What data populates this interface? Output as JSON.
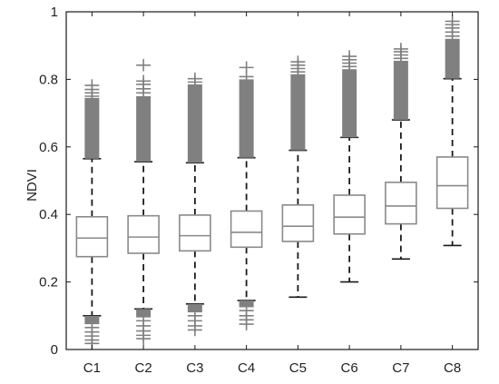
{
  "chart_data": {
    "type": "box",
    "title": "",
    "xlabel": "",
    "ylabel": "NDVI",
    "ylim": [
      0,
      1
    ],
    "yticks": [
      0,
      0.2,
      0.4,
      0.6,
      0.8,
      1
    ],
    "ytick_labels": [
      "0",
      "0.2",
      "0.4",
      "0.6",
      "0.8",
      "1"
    ],
    "grid": false,
    "legend": "none",
    "colors": {
      "box": "#8a8a8a",
      "whisker": "#1a1a1a",
      "outlier": "#808080",
      "axis": "#1a1a1a"
    },
    "categories": [
      "C1",
      "C2",
      "C3",
      "C4",
      "C5",
      "C6",
      "C7",
      "C8"
    ],
    "boxes": [
      {
        "category": "C1",
        "whisker_low": 0.1,
        "q1": 0.275,
        "median": 0.33,
        "q3": 0.393,
        "whisker_high": 0.565,
        "outliers_low_dense": [
          0.075,
          0.1
        ],
        "outliers_low_marks": [
          0.065,
          0.052,
          0.04,
          0.028,
          0.018
        ],
        "outliers_high_dense": [
          0.565,
          0.745
        ],
        "outliers_high_marks": [
          0.75,
          0.76,
          0.77,
          0.782
        ]
      },
      {
        "category": "C2",
        "whisker_low": 0.12,
        "q1": 0.285,
        "median": 0.333,
        "q3": 0.396,
        "whisker_high": 0.556,
        "outliers_low_dense": [
          0.095,
          0.12
        ],
        "outliers_low_marks": [
          0.085,
          0.07,
          0.055,
          0.042,
          0.032
        ],
        "outliers_high_dense": [
          0.556,
          0.75
        ],
        "outliers_high_marks": [
          0.76,
          0.772,
          0.785,
          0.795,
          0.842
        ]
      },
      {
        "category": "C3",
        "whisker_low": 0.135,
        "q1": 0.292,
        "median": 0.337,
        "q3": 0.398,
        "whisker_high": 0.553,
        "outliers_low_dense": [
          0.11,
          0.135
        ],
        "outliers_low_marks": [
          0.1,
          0.085,
          0.07,
          0.058
        ],
        "outliers_high_dense": [
          0.553,
          0.785
        ],
        "outliers_high_marks": [
          0.792,
          0.802
        ]
      },
      {
        "category": "C4",
        "whisker_low": 0.145,
        "q1": 0.303,
        "median": 0.347,
        "q3": 0.41,
        "whisker_high": 0.568,
        "outliers_low_dense": [
          0.125,
          0.145
        ],
        "outliers_low_marks": [
          0.115,
          0.1,
          0.088,
          0.075
        ],
        "outliers_high_dense": [
          0.568,
          0.8
        ],
        "outliers_high_marks": [
          0.808,
          0.835
        ]
      },
      {
        "category": "C5",
        "whisker_low": 0.155,
        "q1": 0.32,
        "median": 0.365,
        "q3": 0.428,
        "whisker_high": 0.59,
        "outliers_low_dense": [],
        "outliers_low_marks": [],
        "outliers_high_dense": [
          0.59,
          0.815
        ],
        "outliers_high_marks": [
          0.822,
          0.832,
          0.842,
          0.852
        ]
      },
      {
        "category": "C6",
        "whisker_low": 0.2,
        "q1": 0.342,
        "median": 0.392,
        "q3": 0.457,
        "whisker_high": 0.628,
        "outliers_low_dense": [],
        "outliers_low_marks": [],
        "outliers_high_dense": [
          0.628,
          0.83
        ],
        "outliers_high_marks": [
          0.838,
          0.848,
          0.858,
          0.868
        ]
      },
      {
        "category": "C7",
        "whisker_low": 0.268,
        "q1": 0.372,
        "median": 0.425,
        "q3": 0.495,
        "whisker_high": 0.68,
        "outliers_low_dense": [],
        "outliers_low_marks": [],
        "outliers_high_dense": [
          0.68,
          0.855
        ],
        "outliers_high_marks": [
          0.862,
          0.872,
          0.882,
          0.89
        ]
      },
      {
        "category": "C8",
        "whisker_low": 0.308,
        "q1": 0.418,
        "median": 0.485,
        "q3": 0.57,
        "whisker_high": 0.802,
        "outliers_low_dense": [],
        "outliers_low_marks": [],
        "outliers_high_dense": [
          0.802,
          0.92
        ],
        "outliers_high_marks": [
          0.928,
          0.94,
          0.952,
          0.962,
          0.972
        ]
      }
    ]
  }
}
